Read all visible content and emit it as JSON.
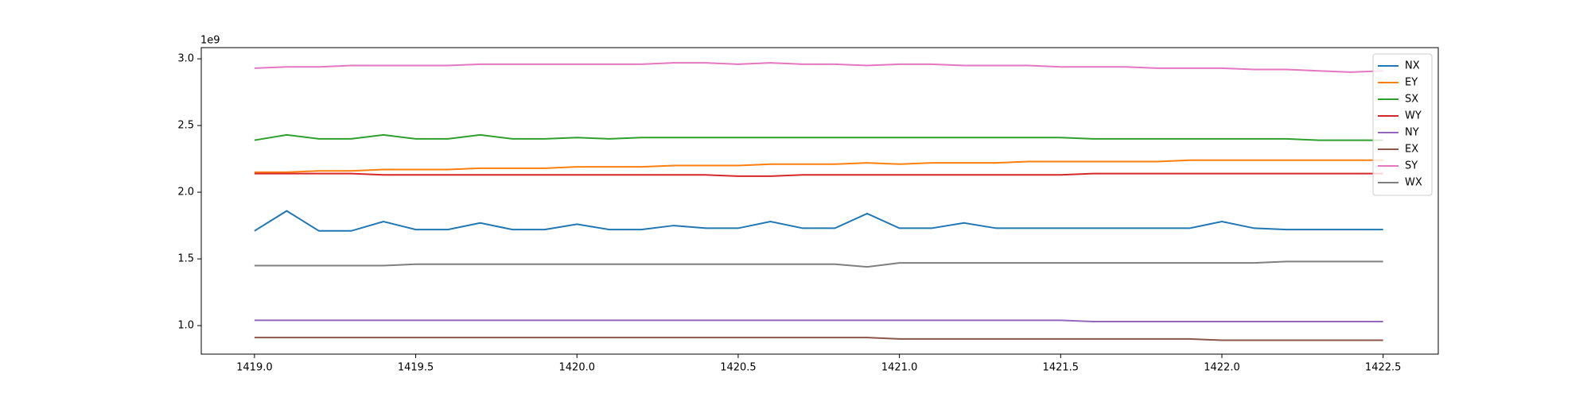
{
  "chart_data": {
    "type": "line",
    "y_offset_label": "1e9",
    "x": [
      1419.0,
      1419.1,
      1419.2,
      1419.3,
      1419.4,
      1419.5,
      1419.6,
      1419.7,
      1419.8,
      1419.9,
      1420.0,
      1420.1,
      1420.2,
      1420.3,
      1420.4,
      1420.5,
      1420.6,
      1420.7,
      1420.8,
      1420.9,
      1421.0,
      1421.1,
      1421.2,
      1421.3,
      1421.4,
      1421.5,
      1421.6,
      1421.7,
      1421.8,
      1421.9,
      1422.0,
      1422.1,
      1422.2,
      1422.3,
      1422.4,
      1422.5
    ],
    "series": [
      {
        "name": "NX",
        "color": "#1f77b4",
        "values": [
          1.71,
          1.86,
          1.71,
          1.71,
          1.78,
          1.72,
          1.72,
          1.77,
          1.72,
          1.72,
          1.76,
          1.72,
          1.72,
          1.75,
          1.73,
          1.73,
          1.78,
          1.73,
          1.73,
          1.84,
          1.73,
          1.73,
          1.77,
          1.73,
          1.73,
          1.73,
          1.73,
          1.73,
          1.73,
          1.73,
          1.78,
          1.73,
          1.72,
          1.72,
          1.72,
          1.72
        ]
      },
      {
        "name": "EY",
        "color": "#ff7f0e",
        "values": [
          2.15,
          2.15,
          2.16,
          2.16,
          2.17,
          2.17,
          2.17,
          2.18,
          2.18,
          2.18,
          2.19,
          2.19,
          2.19,
          2.2,
          2.2,
          2.2,
          2.21,
          2.21,
          2.21,
          2.22,
          2.21,
          2.22,
          2.22,
          2.22,
          2.23,
          2.23,
          2.23,
          2.23,
          2.23,
          2.24,
          2.24,
          2.24,
          2.24,
          2.24,
          2.24,
          2.24
        ]
      },
      {
        "name": "SX",
        "color": "#2ca02c",
        "values": [
          2.39,
          2.43,
          2.4,
          2.4,
          2.43,
          2.4,
          2.4,
          2.43,
          2.4,
          2.4,
          2.41,
          2.4,
          2.41,
          2.41,
          2.41,
          2.41,
          2.41,
          2.41,
          2.41,
          2.41,
          2.41,
          2.41,
          2.41,
          2.41,
          2.41,
          2.41,
          2.4,
          2.4,
          2.4,
          2.4,
          2.4,
          2.4,
          2.4,
          2.39,
          2.39,
          2.39
        ]
      },
      {
        "name": "WY",
        "color": "#d62728",
        "values": [
          2.14,
          2.14,
          2.14,
          2.14,
          2.13,
          2.13,
          2.13,
          2.13,
          2.13,
          2.13,
          2.13,
          2.13,
          2.13,
          2.13,
          2.13,
          2.12,
          2.12,
          2.13,
          2.13,
          2.13,
          2.13,
          2.13,
          2.13,
          2.13,
          2.13,
          2.13,
          2.14,
          2.14,
          2.14,
          2.14,
          2.14,
          2.14,
          2.14,
          2.14,
          2.14,
          2.14
        ]
      },
      {
        "name": "NY",
        "color": "#9467bd",
        "values": [
          1.04,
          1.04,
          1.04,
          1.04,
          1.04,
          1.04,
          1.04,
          1.04,
          1.04,
          1.04,
          1.04,
          1.04,
          1.04,
          1.04,
          1.04,
          1.04,
          1.04,
          1.04,
          1.04,
          1.04,
          1.04,
          1.04,
          1.04,
          1.04,
          1.04,
          1.04,
          1.03,
          1.03,
          1.03,
          1.03,
          1.03,
          1.03,
          1.03,
          1.03,
          1.03,
          1.03
        ]
      },
      {
        "name": "EX",
        "color": "#8c564b",
        "values": [
          0.91,
          0.91,
          0.91,
          0.91,
          0.91,
          0.91,
          0.91,
          0.91,
          0.91,
          0.91,
          0.91,
          0.91,
          0.91,
          0.91,
          0.91,
          0.91,
          0.91,
          0.91,
          0.91,
          0.91,
          0.9,
          0.9,
          0.9,
          0.9,
          0.9,
          0.9,
          0.9,
          0.9,
          0.9,
          0.9,
          0.89,
          0.89,
          0.89,
          0.89,
          0.89,
          0.89
        ]
      },
      {
        "name": "SY",
        "color": "#e377c2",
        "values": [
          2.93,
          2.94,
          2.94,
          2.95,
          2.95,
          2.95,
          2.95,
          2.96,
          2.96,
          2.96,
          2.96,
          2.96,
          2.96,
          2.97,
          2.97,
          2.96,
          2.97,
          2.96,
          2.96,
          2.95,
          2.96,
          2.96,
          2.95,
          2.95,
          2.95,
          2.94,
          2.94,
          2.94,
          2.93,
          2.93,
          2.93,
          2.92,
          2.92,
          2.91,
          2.9,
          2.91
        ]
      },
      {
        "name": "WX",
        "color": "#7f7f7f",
        "values": [
          1.45,
          1.45,
          1.45,
          1.45,
          1.45,
          1.46,
          1.46,
          1.46,
          1.46,
          1.46,
          1.46,
          1.46,
          1.46,
          1.46,
          1.46,
          1.46,
          1.46,
          1.46,
          1.46,
          1.44,
          1.47,
          1.47,
          1.47,
          1.47,
          1.47,
          1.47,
          1.47,
          1.47,
          1.47,
          1.47,
          1.47,
          1.47,
          1.48,
          1.48,
          1.48,
          1.48
        ]
      }
    ],
    "xlim": [
      1418.835,
      1422.671
    ],
    "xticks": [
      {
        "value": 1419,
        "label": "1419.0"
      },
      1419.5,
      {
        "value": 1420,
        "label": "1420.0"
      },
      1420.5,
      {
        "value": 1421,
        "label": "1421.0"
      },
      1421.5,
      {
        "value": 1422,
        "label": "1422.0"
      },
      1422.5
    ],
    "ylim": [
      0.786,
      3.084
    ],
    "yticks": [
      {
        "value": 1,
        "label": "1.0"
      },
      1.5,
      {
        "value": 2,
        "label": "2.0"
      },
      2.5,
      {
        "value": 3,
        "label": "3.0"
      }
    ],
    "grid": false,
    "legend": "upper right"
  }
}
